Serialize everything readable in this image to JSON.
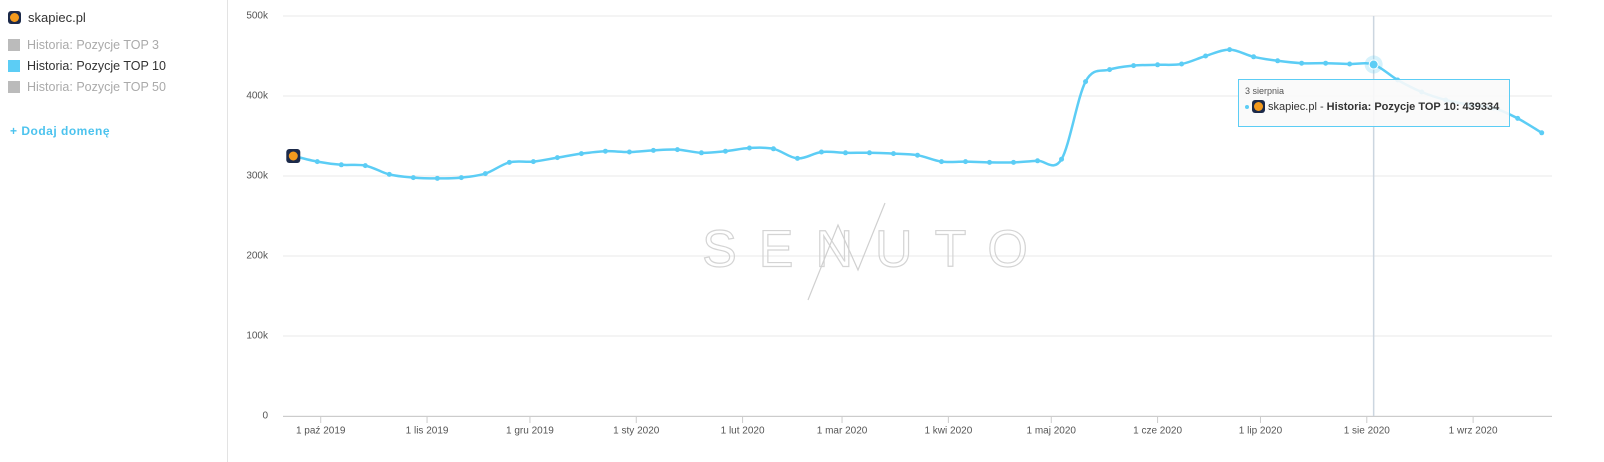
{
  "sidebar": {
    "domain": "skapiec.pl",
    "add_domain": "+ Dodaj domenę"
  },
  "chart_data": {
    "type": "line",
    "x": [
      "2019-09-23",
      "2019-09-30",
      "2019-10-07",
      "2019-10-14",
      "2019-10-21",
      "2019-10-28",
      "2019-11-04",
      "2019-11-11",
      "2019-11-18",
      "2019-11-25",
      "2019-12-02",
      "2019-12-09",
      "2019-12-16",
      "2019-12-23",
      "2019-12-30",
      "2020-01-06",
      "2020-01-13",
      "2020-01-20",
      "2020-01-27",
      "2020-02-03",
      "2020-02-10",
      "2020-02-17",
      "2020-02-24",
      "2020-03-02",
      "2020-03-09",
      "2020-03-16",
      "2020-03-23",
      "2020-03-30",
      "2020-04-06",
      "2020-04-13",
      "2020-04-20",
      "2020-04-27",
      "2020-05-04",
      "2020-05-11",
      "2020-05-18",
      "2020-05-25",
      "2020-06-01",
      "2020-06-08",
      "2020-06-15",
      "2020-06-22",
      "2020-06-29",
      "2020-07-06",
      "2020-07-13",
      "2020-07-20",
      "2020-07-27",
      "2020-08-03",
      "2020-08-10",
      "2020-08-17",
      "2020-08-24",
      "2020-08-31",
      "2020-09-07",
      "2020-09-14",
      "2020-09-21"
    ],
    "series": [
      {
        "name": "Historia: Pozycje TOP 10",
        "color": "#5ccdf5",
        "values": [
          325000,
          318000,
          314000,
          313000,
          302000,
          298000,
          297000,
          298000,
          303000,
          317000,
          318000,
          323000,
          328000,
          331000,
          330000,
          332000,
          333000,
          329000,
          331000,
          335000,
          334000,
          322000,
          330000,
          329000,
          329000,
          328000,
          326000,
          318000,
          318000,
          317000,
          317000,
          319000,
          321000,
          418000,
          433000,
          438000,
          439000,
          440000,
          450000,
          458000,
          449000,
          444000,
          441000,
          441000,
          440000,
          439334,
          420000,
          405000,
          395000,
          389000,
          385000,
          372000,
          354000
        ]
      }
    ],
    "hidden_series": [
      {
        "name": "Historia: Pozycje TOP 3",
        "color": "#bbbbbb"
      },
      {
        "name": "Historia: Pozycje TOP 50",
        "color": "#bbbbbb"
      }
    ],
    "xlim": [
      "2019-09-20",
      "2020-09-24"
    ],
    "xticks": [
      {
        "value": "2019-10-01",
        "label": "1 paź 2019"
      },
      {
        "value": "2019-11-01",
        "label": "1 lis 2019"
      },
      {
        "value": "2019-12-01",
        "label": "1 gru 2019"
      },
      {
        "value": "2020-01-01",
        "label": "1 sty 2020"
      },
      {
        "value": "2020-02-01",
        "label": "1 lut 2020"
      },
      {
        "value": "2020-03-01",
        "label": "1 mar 2020"
      },
      {
        "value": "2020-04-01",
        "label": "1 kwi 2020"
      },
      {
        "value": "2020-05-01",
        "label": "1 maj 2020"
      },
      {
        "value": "2020-06-01",
        "label": "1 cze 2020"
      },
      {
        "value": "2020-07-01",
        "label": "1 lip 2020"
      },
      {
        "value": "2020-08-01",
        "label": "1 sie 2020"
      },
      {
        "value": "2020-09-01",
        "label": "1 wrz 2020"
      }
    ],
    "ylim": [
      0,
      500000
    ],
    "yticks": [
      0,
      {
        "value": 100000,
        "label": "100k"
      },
      {
        "value": 200000,
        "label": "200k"
      },
      {
        "value": 300000,
        "label": "300k"
      },
      {
        "value": 400000,
        "label": "400k"
      },
      {
        "value": 500000,
        "label": "500k"
      }
    ],
    "grid": true,
    "watermark": "SENUTO",
    "tooltip": {
      "x": "2020-08-03",
      "date": "3 sierpnia",
      "prefix": "skapiec.pl -",
      "label": "Historia: Pozycje TOP 10:"
    }
  }
}
